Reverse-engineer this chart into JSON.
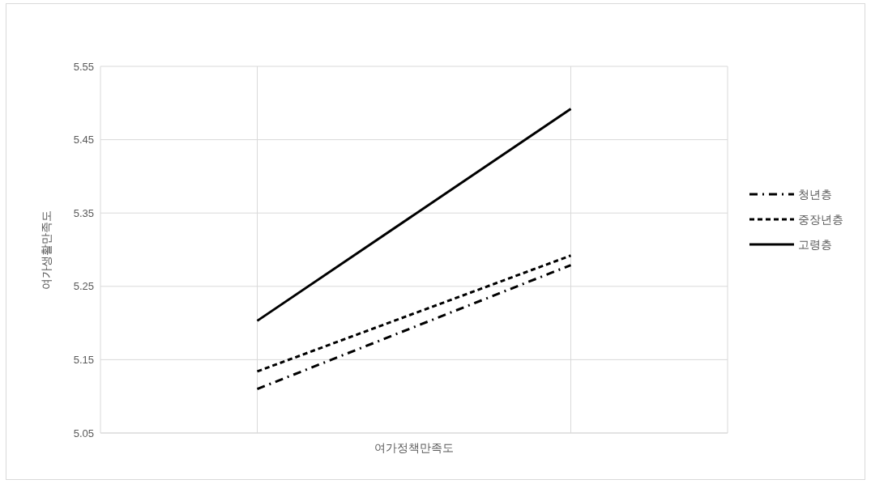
{
  "chart_data": {
    "type": "line",
    "xlabel": "여가정책만족도",
    "ylabel": "여가생활만족도",
    "categories": [
      null,
      null
    ],
    "series": [
      {
        "name": "청년층",
        "color": "#000000",
        "line_style": "dashdot",
        "values": [
          5.11,
          5.279
        ]
      },
      {
        "name": "중장년층",
        "color": "#000000",
        "line_style": "dashed",
        "values": [
          5.134,
          5.292
        ]
      },
      {
        "name": "고령층",
        "color": "#000000",
        "line_style": "solid",
        "values": [
          5.203,
          5.492
        ]
      }
    ],
    "ylim": [
      5.05,
      5.55
    ],
    "yticks": [
      5.05,
      5.15,
      5.25,
      5.35,
      5.45,
      5.55
    ],
    "grid": true,
    "legend": "right",
    "marker": "none"
  }
}
